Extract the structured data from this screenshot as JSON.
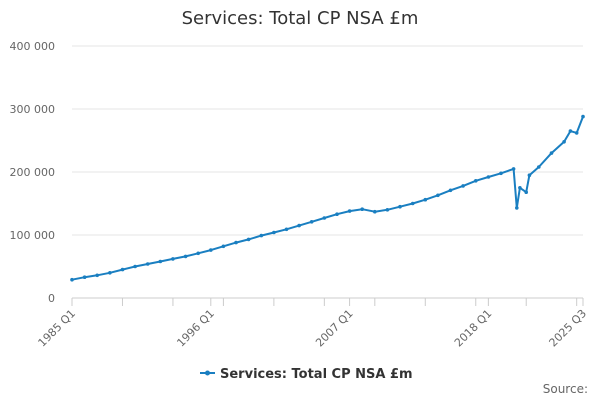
{
  "chart_data": {
    "type": "line",
    "title": "Services: Total CP NSA £m",
    "xlabel": "",
    "ylabel": "",
    "ylim": [
      0,
      400000
    ],
    "y_ticks": [
      0,
      100000,
      200000,
      300000,
      400000
    ],
    "y_tick_labels": [
      "0",
      "100 000",
      "200 000",
      "300 000",
      "400 000"
    ],
    "x_tick_labels": [
      "1985 Q1",
      "1996 Q1",
      "2007 Q1",
      "2018 Q1",
      "2025 Q3"
    ],
    "x_range": [
      "1985 Q1",
      "2025 Q3"
    ],
    "grid": "horizontal",
    "legend": "bottom",
    "series": [
      {
        "name": "Services: Total CP NSA £m",
        "color": "#1a7fc1",
        "x": [
          "1985 Q1",
          "1986 Q1",
          "1987 Q1",
          "1988 Q1",
          "1989 Q1",
          "1990 Q1",
          "1991 Q1",
          "1992 Q1",
          "1993 Q1",
          "1994 Q1",
          "1995 Q1",
          "1996 Q1",
          "1997 Q1",
          "1998 Q1",
          "1999 Q1",
          "2000 Q1",
          "2001 Q1",
          "2002 Q1",
          "2003 Q1",
          "2004 Q1",
          "2005 Q1",
          "2006 Q1",
          "2007 Q1",
          "2008 Q1",
          "2009 Q1",
          "2010 Q1",
          "2011 Q1",
          "2012 Q1",
          "2013 Q1",
          "2014 Q1",
          "2015 Q1",
          "2016 Q1",
          "2017 Q1",
          "2018 Q1",
          "2019 Q1",
          "2020 Q1",
          "2020 Q2",
          "2020 Q3",
          "2021 Q1",
          "2021 Q2",
          "2022 Q1",
          "2023 Q1",
          "2024 Q1",
          "2024 Q3",
          "2025 Q1",
          "2025 Q3"
        ],
        "values": [
          29000,
          33000,
          36000,
          40000,
          45000,
          50000,
          54000,
          58000,
          62000,
          66000,
          71000,
          76000,
          82000,
          88000,
          93000,
          99000,
          104000,
          109000,
          115000,
          121000,
          127000,
          133000,
          138000,
          141000,
          137000,
          140000,
          145000,
          150000,
          156000,
          163000,
          171000,
          178000,
          186000,
          192000,
          198000,
          205000,
          143000,
          175000,
          168000,
          195000,
          208000,
          230000,
          248000,
          265000,
          262000,
          288000
        ]
      }
    ]
  },
  "legend": {
    "label": "Services: Total CP NSA £m"
  },
  "footer": {
    "source": "Source:"
  }
}
